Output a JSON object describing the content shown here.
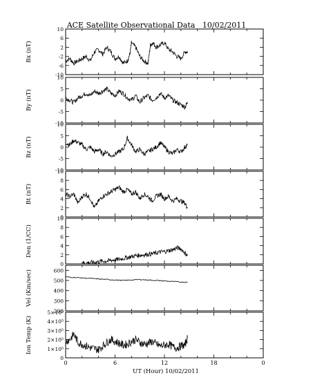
{
  "chart_data": {
    "type": "line",
    "title": "ACE Satellite Observational Data",
    "date": "10/02/2011",
    "xlabel": "UT (Hour)",
    "xlabel_date": "10/02/2011",
    "x_ticks": [
      "0",
      "6",
      "12",
      "18",
      "0"
    ],
    "xlim": [
      0,
      24
    ],
    "data_end_hour": 14.8,
    "panels": [
      {
        "ylabel": "Bx (nT)",
        "ylim": [
          -10,
          10
        ],
        "y_ticks": [
          "10",
          "6",
          "2",
          "-2",
          "-6",
          "-10"
        ],
        "y_tick_values": [
          10,
          6,
          2,
          -2,
          -6,
          -10
        ],
        "series": [
          {
            "x": [
              0,
              0.5,
              1,
              1.5,
              2,
              2.5,
              3,
              3.5,
              4,
              4.5,
              5,
              5.5,
              6,
              6.5,
              7,
              7.5,
              7.8,
              8,
              8.5,
              9,
              9.5,
              10,
              10.3,
              10.6,
              11,
              11.5,
              12,
              12.5,
              13,
              13.5,
              14,
              14.5,
              14.8
            ],
            "y": [
              -4,
              -3,
              -5,
              -4,
              -3,
              -2,
              -4,
              0,
              1,
              -1,
              2,
              0,
              -3,
              -2,
              -5,
              -4,
              -1,
              4,
              2,
              -2,
              -4,
              -5,
              3,
              4,
              2,
              3,
              4,
              1,
              0,
              -2,
              -3,
              0,
              0
            ]
          }
        ]
      },
      {
        "ylabel": "By (nT)",
        "ylim": [
          -10,
          10
        ],
        "y_ticks": [
          "10",
          "5",
          "0",
          "-5",
          "-10"
        ],
        "y_tick_values": [
          10,
          5,
          0,
          -5,
          -10
        ],
        "series": [
          {
            "x": [
              0,
              0.5,
              1,
              1.5,
              2,
              2.5,
              3,
              3.5,
              4,
              4.5,
              5,
              5.5,
              6,
              6.5,
              7,
              7.5,
              8,
              8.5,
              9,
              9.5,
              10,
              10.5,
              11,
              11.5,
              12,
              12.5,
              13,
              13.5,
              14,
              14.5,
              14.8
            ],
            "y": [
              1,
              0,
              -1,
              1,
              2,
              3,
              2,
              4,
              3,
              4,
              5,
              3,
              2,
              4,
              3,
              1,
              0,
              2,
              -1,
              1,
              2,
              0,
              1,
              3,
              1,
              2,
              0,
              -1,
              -2,
              -3,
              -1
            ]
          }
        ]
      },
      {
        "ylabel": "Bz (nT)",
        "ylim": [
          -10,
          10
        ],
        "y_ticks": [
          "10",
          "5",
          "0",
          "-5",
          "-10"
        ],
        "y_tick_values": [
          10,
          5,
          0,
          -5,
          -10
        ],
        "series": [
          {
            "x": [
              0,
              0.5,
              1,
              1.5,
              2,
              2.5,
              3,
              3.5,
              4,
              4.5,
              5,
              5.5,
              6,
              6.5,
              7,
              7.5,
              8,
              8.5,
              9,
              9.5,
              10,
              10.5,
              11,
              11.5,
              12,
              12.5,
              13,
              13.5,
              14,
              14.5,
              14.8
            ],
            "y": [
              2,
              1,
              3,
              2,
              1,
              -1,
              0,
              -2,
              -1,
              -3,
              -2,
              -4,
              -3,
              -2,
              -1,
              4,
              1,
              -2,
              -1,
              -3,
              -2,
              -1,
              0,
              2,
              0,
              -2,
              -3,
              -1,
              -2,
              0,
              1
            ]
          }
        ]
      },
      {
        "ylabel": "Bt (nT)",
        "ylim": [
          0,
          10
        ],
        "y_ticks": [
          "10",
          "8",
          "6",
          "4",
          "2",
          "0"
        ],
        "y_tick_values": [
          10,
          8,
          6,
          4,
          2,
          0
        ],
        "series": [
          {
            "x": [
              0,
              0.5,
              1,
              1.5,
              2,
              2.5,
              3,
              3.5,
              4,
              4.5,
              5,
              5.5,
              6,
              6.5,
              7,
              7.5,
              8,
              8.5,
              9,
              9.5,
              10,
              10.5,
              11,
              11.5,
              12,
              12.5,
              13,
              13.5,
              14,
              14.5,
              14.8
            ],
            "y": [
              5,
              4.5,
              5,
              3,
              4.5,
              5,
              4,
              2,
              3.5,
              4.5,
              5,
              5.5,
              6,
              6.5,
              5.5,
              6,
              5,
              5.5,
              4,
              5,
              4.5,
              3.5,
              4.5,
              5,
              4,
              4.5,
              3.5,
              4,
              3.5,
              3,
              2
            ]
          }
        ]
      },
      {
        "ylabel": "Den (1/CC)",
        "ylim": [
          0,
          10
        ],
        "y_ticks": [
          "10",
          "8",
          "6",
          "4",
          "2",
          "0"
        ],
        "y_tick_values": [
          10,
          8,
          6,
          4,
          2,
          0
        ],
        "series": [
          {
            "x": [
              2,
              2.5,
              3,
              3.5,
              4,
              4.5,
              5,
              5.5,
              6,
              6.5,
              7,
              7.5,
              8,
              8.5,
              9,
              9.5,
              10,
              10.5,
              11,
              11.5,
              12,
              12.5,
              13,
              13.5,
              14,
              14.5,
              14.8
            ],
            "y": [
              0.2,
              0.2,
              0.3,
              0.3,
              0.5,
              0.6,
              0.6,
              0.8,
              0.9,
              1.0,
              1.2,
              1.4,
              1.6,
              1.8,
              1.9,
              2.0,
              2.1,
              2.2,
              2.4,
              2.6,
              2.7,
              2.9,
              3.1,
              3.5,
              3.3,
              2.4,
              1.8
            ]
          }
        ]
      },
      {
        "ylabel": "Vel (Km/sec)",
        "ylim": [
          200,
          650
        ],
        "y_ticks": [
          "600",
          "500",
          "400",
          "300",
          "200"
        ],
        "y_tick_values": [
          600,
          500,
          400,
          300,
          200
        ],
        "series": [
          {
            "x": [
              0,
              1,
              2,
              3,
              4,
              5,
              6,
              7,
              8,
              9,
              10,
              11,
              12,
              13,
              14,
              14.8
            ],
            "y": [
              535,
              530,
              525,
              520,
              515,
              510,
              505,
              500,
              505,
              510,
              505,
              500,
              495,
              490,
              485,
              482
            ]
          }
        ]
      },
      {
        "ylabel": "Ion Temp (K)",
        "ylim": [
          0,
          500000
        ],
        "y_ticks": [
          "5×10⁵",
          "4×10⁵",
          "3×10⁵",
          "2×10⁵",
          "1×10⁵",
          "0"
        ],
        "y_tick_values": [
          500000,
          400000,
          300000,
          200000,
          100000,
          0
        ],
        "series": [
          {
            "x": [
              0,
              0.5,
              1,
              1.5,
              2,
              2.5,
              3,
              3.5,
              4,
              4.5,
              5,
              5.5,
              6,
              6.5,
              7,
              7.5,
              8,
              8.5,
              9,
              9.5,
              10,
              10.5,
              11,
              11.5,
              12,
              12.5,
              13,
              13.5,
              14,
              14.5,
              14.8
            ],
            "y": [
              180000,
              200000,
              260000,
              170000,
              150000,
              130000,
              110000,
              100000,
              90000,
              130000,
              170000,
              200000,
              180000,
              160000,
              140000,
              150000,
              180000,
              200000,
              170000,
              150000,
              160000,
              180000,
              150000,
              130000,
              140000,
              150000,
              120000,
              110000,
              130000,
              140000,
              220000
            ]
          }
        ]
      }
    ]
  }
}
